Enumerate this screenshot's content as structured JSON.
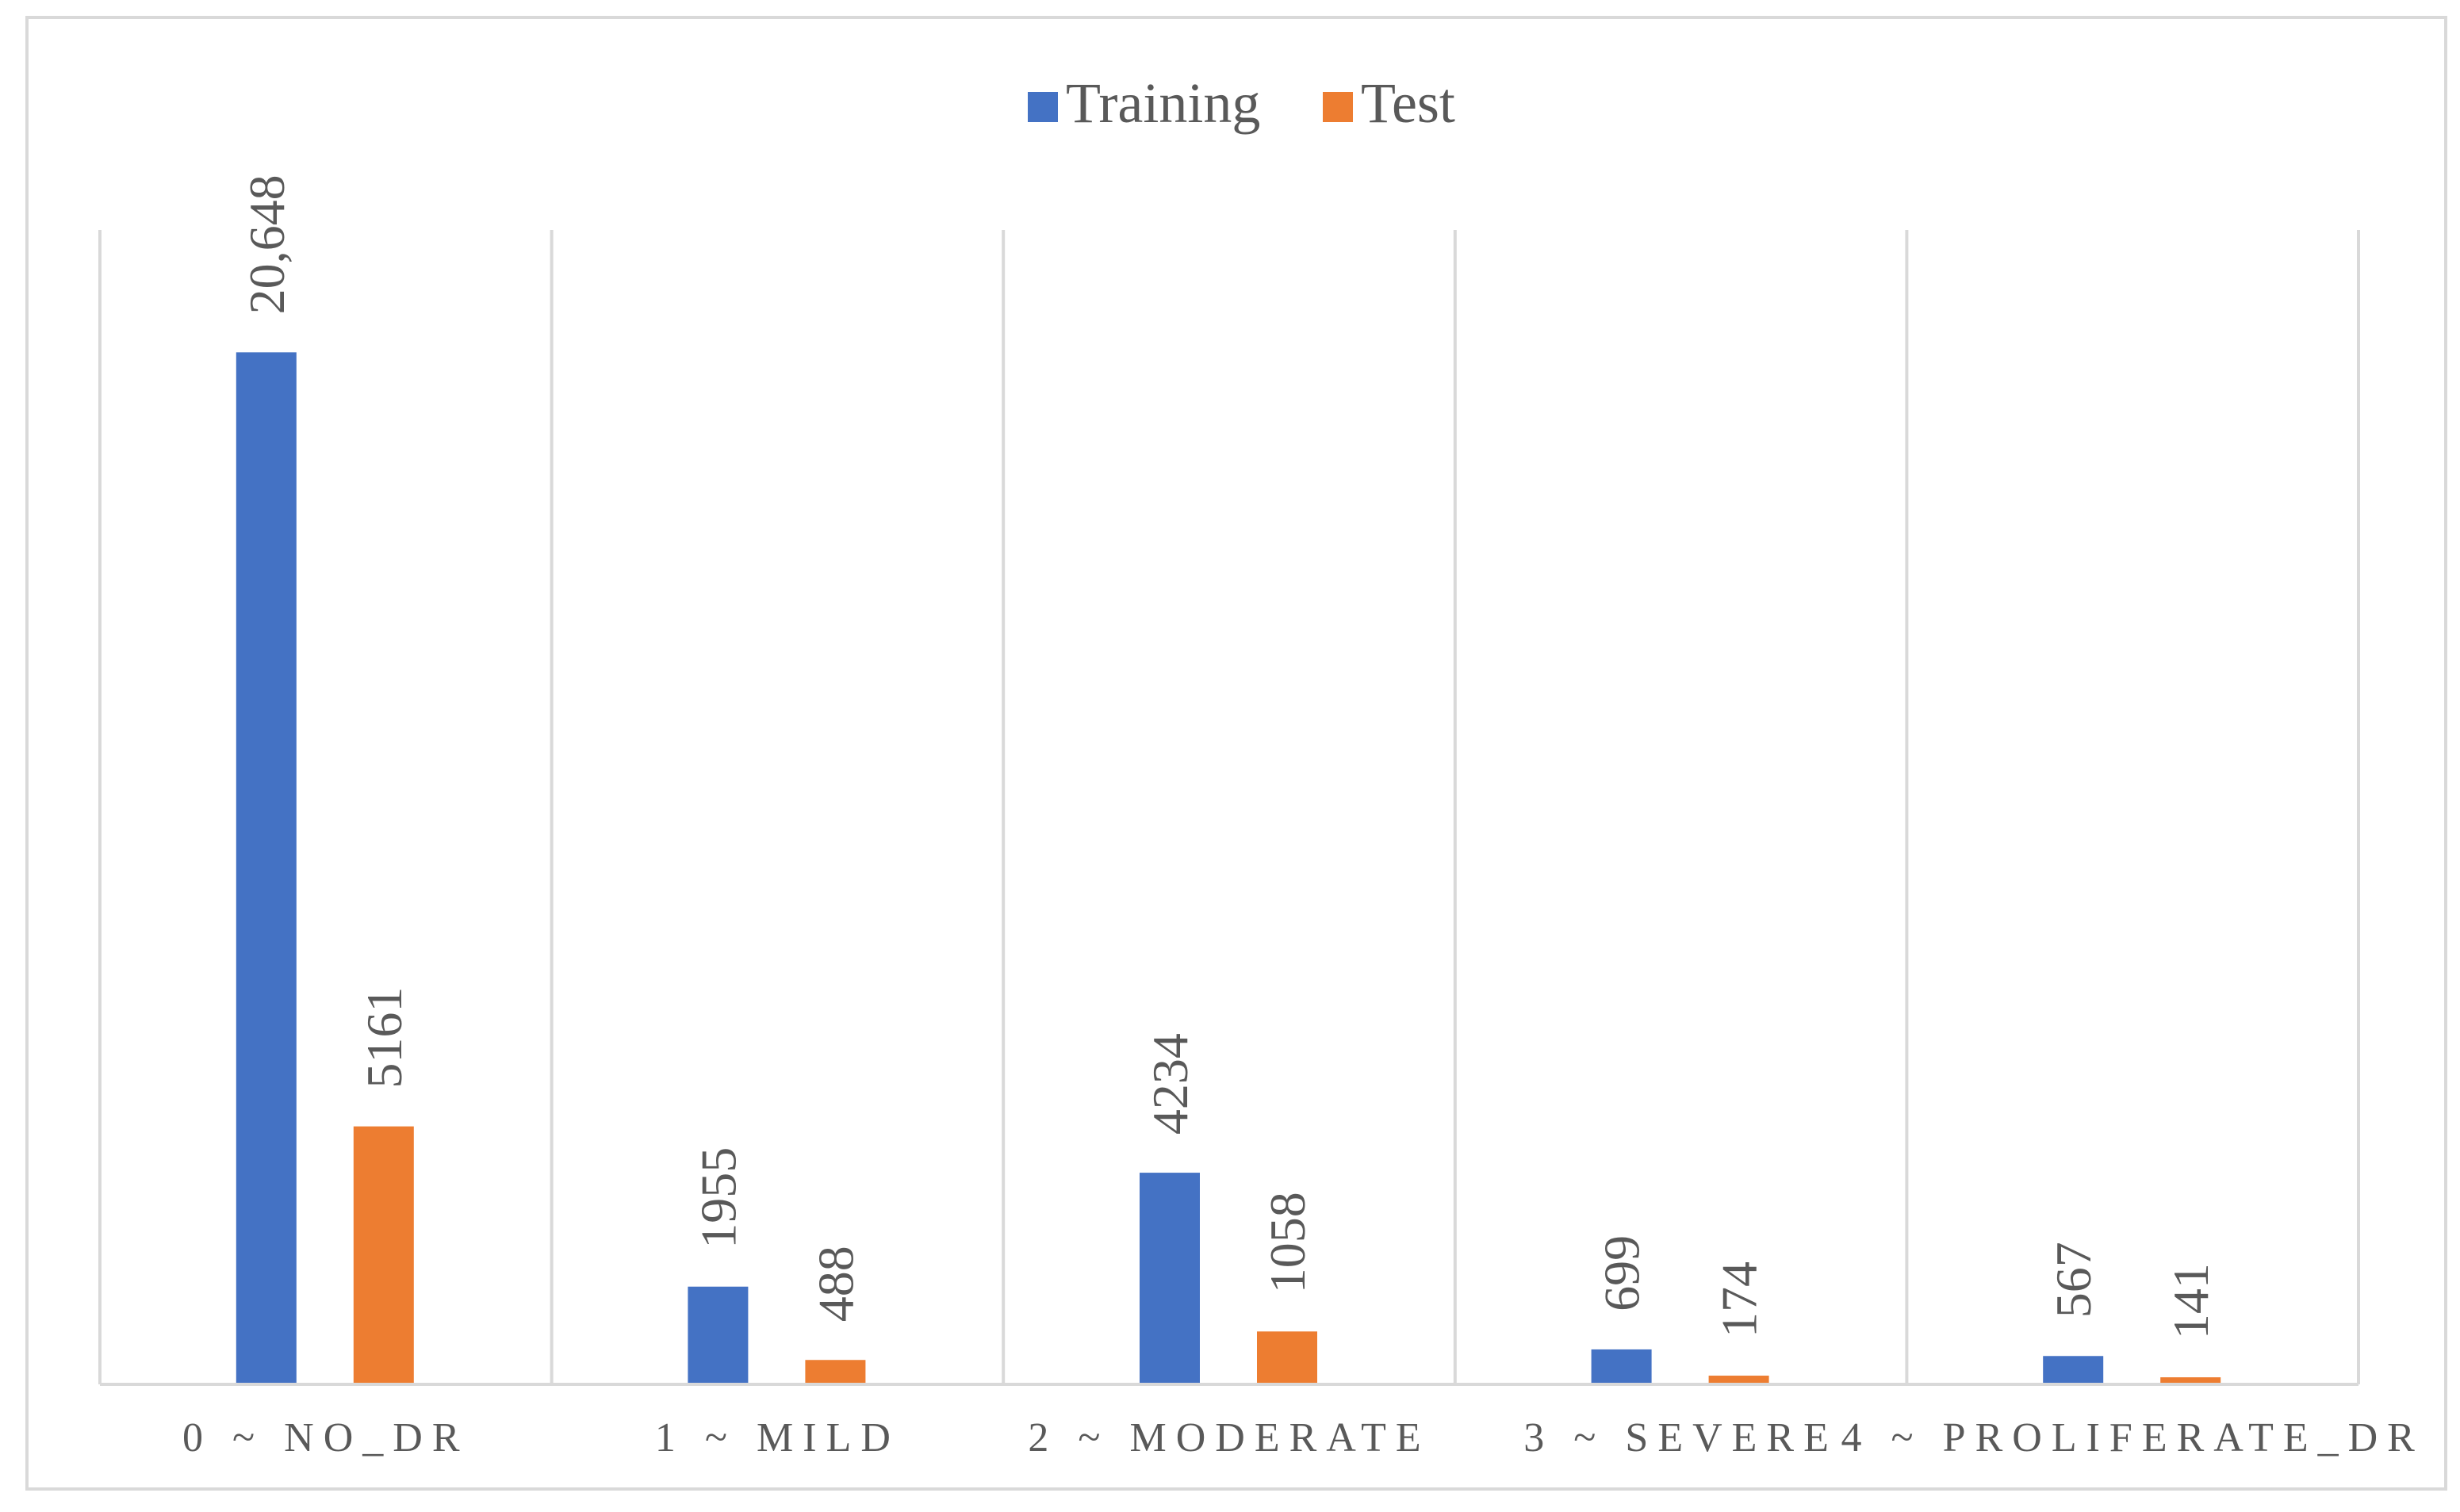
{
  "chart_data": {
    "type": "bar",
    "categories": [
      "0 ~ NO_DR",
      "1 ~ MILD",
      "2 ~ MODERATE",
      "3 ~ SEVERE",
      "4 ~ PROLIFERATE_DR"
    ],
    "series": [
      {
        "name": "Training",
        "color": "#4472C4",
        "values": [
          20648,
          1955,
          4234,
          699,
          567
        ],
        "labels": [
          "20,648",
          "1955",
          "4234",
          "699",
          "567"
        ]
      },
      {
        "name": "Test",
        "color": "#ED7D31",
        "values": [
          5161,
          488,
          1058,
          174,
          141
        ],
        "labels": [
          "5161",
          "488",
          "1058",
          "174",
          "141"
        ]
      }
    ],
    "legend": "top-center",
    "grid": "vertical category separators",
    "ylim": [
      0,
      25000
    ],
    "title": "",
    "xlabel": "",
    "ylabel": ""
  }
}
